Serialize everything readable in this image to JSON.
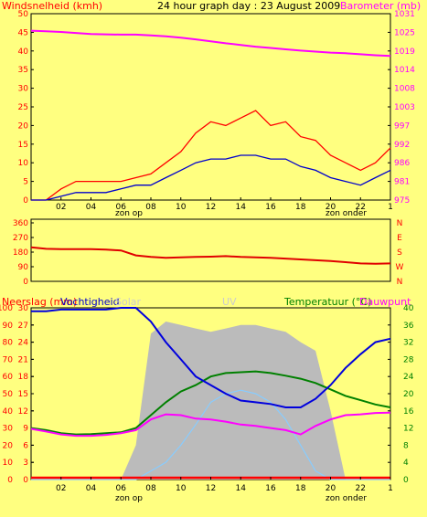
{
  "header": {
    "left_label": "Windsnelheid (kmh)",
    "title": "24 hour graph day : 23 August 2009",
    "right_label": "Barometer (mb)"
  },
  "colors": {
    "background": "#ffff80",
    "frame": "#000000",
    "wind_gust": "#ff0000",
    "wind_avg": "#0000cc",
    "barometer": "#ff00ff",
    "direction": "#e00000",
    "humidity": "#0000dd",
    "temperature": "#008000",
    "dewpoint": "#ff00ff",
    "solar": "#bbbbbb",
    "uv": "#88ccff",
    "rain": "#ff0000",
    "left_axis_text": "#ff0000",
    "right_axis_pink": "#ff00ff",
    "right_axis_green": "#008000"
  },
  "x_axis": {
    "ticks": [
      "02",
      "04",
      "06",
      "08",
      "10",
      "12",
      "14",
      "16",
      "18",
      "20",
      "22",
      "1"
    ],
    "sunrise_label": "zon op",
    "sunset_label": "zon onder"
  },
  "chart_data": [
    {
      "type": "line",
      "title": "24 hour graph day : 23 August 2009",
      "ylabel": "Windsnelheid (kmh)",
      "ylabel_right": "Barometer (mb)",
      "ylim": [
        0,
        50
      ],
      "ylim_right": [
        975,
        1031
      ],
      "yticks": [
        "0",
        "5",
        "10",
        "15",
        "20",
        "25",
        "30",
        "35",
        "40",
        "45",
        "50"
      ],
      "yticks_right": [
        "975",
        "981",
        "986",
        "992",
        "997",
        "1003",
        "1008",
        "1014",
        "1019",
        "1025",
        "1031"
      ],
      "x": [
        0,
        1,
        2,
        3,
        4,
        5,
        6,
        7,
        8,
        9,
        10,
        11,
        12,
        13,
        14,
        15,
        16,
        17,
        18,
        19,
        20,
        21,
        22,
        23,
        24
      ],
      "series": [
        {
          "axis": "left",
          "key": "wind_gust",
          "values": [
            0,
            0,
            3,
            5,
            5,
            5,
            5,
            6,
            7,
            10,
            13,
            18,
            21,
            20,
            22,
            24,
            20,
            21,
            17,
            16,
            12,
            10,
            8,
            10,
            14
          ]
        },
        {
          "axis": "left",
          "key": "wind_avg",
          "values": [
            0,
            0,
            1,
            2,
            2,
            2,
            3,
            4,
            4,
            6,
            8,
            10,
            11,
            11,
            12,
            12,
            11,
            11,
            9,
            8,
            6,
            5,
            4,
            6,
            8
          ]
        },
        {
          "axis": "right",
          "key": "barometer",
          "values": [
            1025.9,
            1025.7,
            1025.5,
            1025.2,
            1024.9,
            1024.8,
            1024.7,
            1024.7,
            1024.5,
            1024.2,
            1023.8,
            1023.3,
            1022.7,
            1022.1,
            1021.6,
            1021.1,
            1020.7,
            1020.3,
            1019.9,
            1019.6,
            1019.3,
            1019.1,
            1018.8,
            1018.5,
            1018.3
          ]
        }
      ]
    },
    {
      "type": "line",
      "ylim": [
        0,
        360
      ],
      "yticks": [
        "0",
        "90",
        "180",
        "270",
        "360"
      ],
      "compass_labels": [
        "N",
        "W",
        "S",
        "E",
        "N"
      ],
      "x": [
        0,
        1,
        2,
        3,
        4,
        5,
        6,
        7,
        8,
        9,
        10,
        11,
        12,
        13,
        14,
        15,
        16,
        17,
        18,
        19,
        20,
        21,
        22,
        23,
        24
      ],
      "series": [
        {
          "key": "direction",
          "values": [
            210,
            200,
            198,
            198,
            198,
            195,
            190,
            160,
            150,
            145,
            148,
            150,
            152,
            155,
            150,
            148,
            145,
            140,
            135,
            130,
            125,
            118,
            110,
            108,
            110
          ]
        }
      ]
    },
    {
      "type": "line",
      "left_label_rain": "Neerslag (mm)",
      "left_label_humidity": "Vochtigheid",
      "label_solar": "Solar",
      "label_uv": "UV",
      "right_label_temp": "Temperatuur (°C)",
      "right_label_dew": "Dauwpunt",
      "ylim_humidity": [
        0,
        100
      ],
      "ylim_temp": [
        0,
        40
      ],
      "yticks_humidity": [
        "0",
        "10",
        "20",
        "30",
        "40",
        "50",
        "60",
        "70",
        "80",
        "90",
        "100"
      ],
      "yticks_rain": [
        "0",
        "3",
        "6",
        "9",
        "12",
        "15",
        "18",
        "21",
        "24",
        "27",
        "30"
      ],
      "yticks_temp": [
        "0",
        "4",
        "8",
        "12",
        "16",
        "20",
        "24",
        "28",
        "32",
        "36",
        "40"
      ],
      "x": [
        0,
        1,
        2,
        3,
        4,
        5,
        6,
        7,
        8,
        9,
        10,
        11,
        12,
        13,
        14,
        15,
        16,
        17,
        18,
        19,
        20,
        21,
        22,
        23,
        24
      ],
      "series": [
        {
          "key": "humidity",
          "axis": "humidity",
          "values": [
            98,
            98,
            99,
            99,
            99,
            99,
            100,
            100,
            92,
            80,
            70,
            60,
            55,
            50,
            46,
            45,
            44,
            42,
            42,
            47,
            55,
            65,
            73,
            80,
            82
          ]
        },
        {
          "key": "temperature",
          "axis": "temp",
          "values": [
            12.0,
            11.5,
            10.8,
            10.5,
            10.6,
            10.8,
            11.0,
            12.0,
            15.0,
            18.0,
            20.5,
            22.0,
            24.0,
            24.8,
            25.0,
            25.2,
            24.8,
            24.2,
            23.5,
            22.5,
            21.0,
            19.5,
            18.5,
            17.5,
            16.8
          ]
        },
        {
          "key": "dewpoint",
          "axis": "temp",
          "values": [
            11.8,
            11.2,
            10.5,
            10.2,
            10.2,
            10.4,
            10.8,
            11.5,
            14.0,
            15.2,
            15.0,
            14.2,
            14.0,
            13.5,
            12.8,
            12.5,
            12.0,
            11.5,
            10.5,
            12.5,
            14.0,
            15.0,
            15.2,
            15.5,
            15.6
          ]
        },
        {
          "key": "solar",
          "axis": "humidity",
          "values": [
            0,
            0,
            0,
            0,
            0,
            0,
            0,
            20,
            85,
            92,
            90,
            88,
            86,
            88,
            90,
            90,
            88,
            86,
            80,
            75,
            40,
            0,
            0,
            0,
            0
          ]
        },
        {
          "key": "uv",
          "axis": "humidity",
          "values": [
            0,
            0,
            0,
            0,
            0,
            0,
            0,
            0,
            5,
            10,
            20,
            32,
            45,
            50,
            52,
            50,
            45,
            35,
            20,
            5,
            0,
            0,
            0,
            0,
            0
          ]
        },
        {
          "key": "rain",
          "axis": "humidity",
          "values": [
            0,
            0,
            0,
            0,
            0,
            0,
            0,
            0,
            0,
            0,
            0,
            0,
            0,
            0,
            0,
            0,
            0,
            0,
            0,
            0,
            0,
            0,
            0,
            0,
            0
          ]
        }
      ]
    }
  ]
}
